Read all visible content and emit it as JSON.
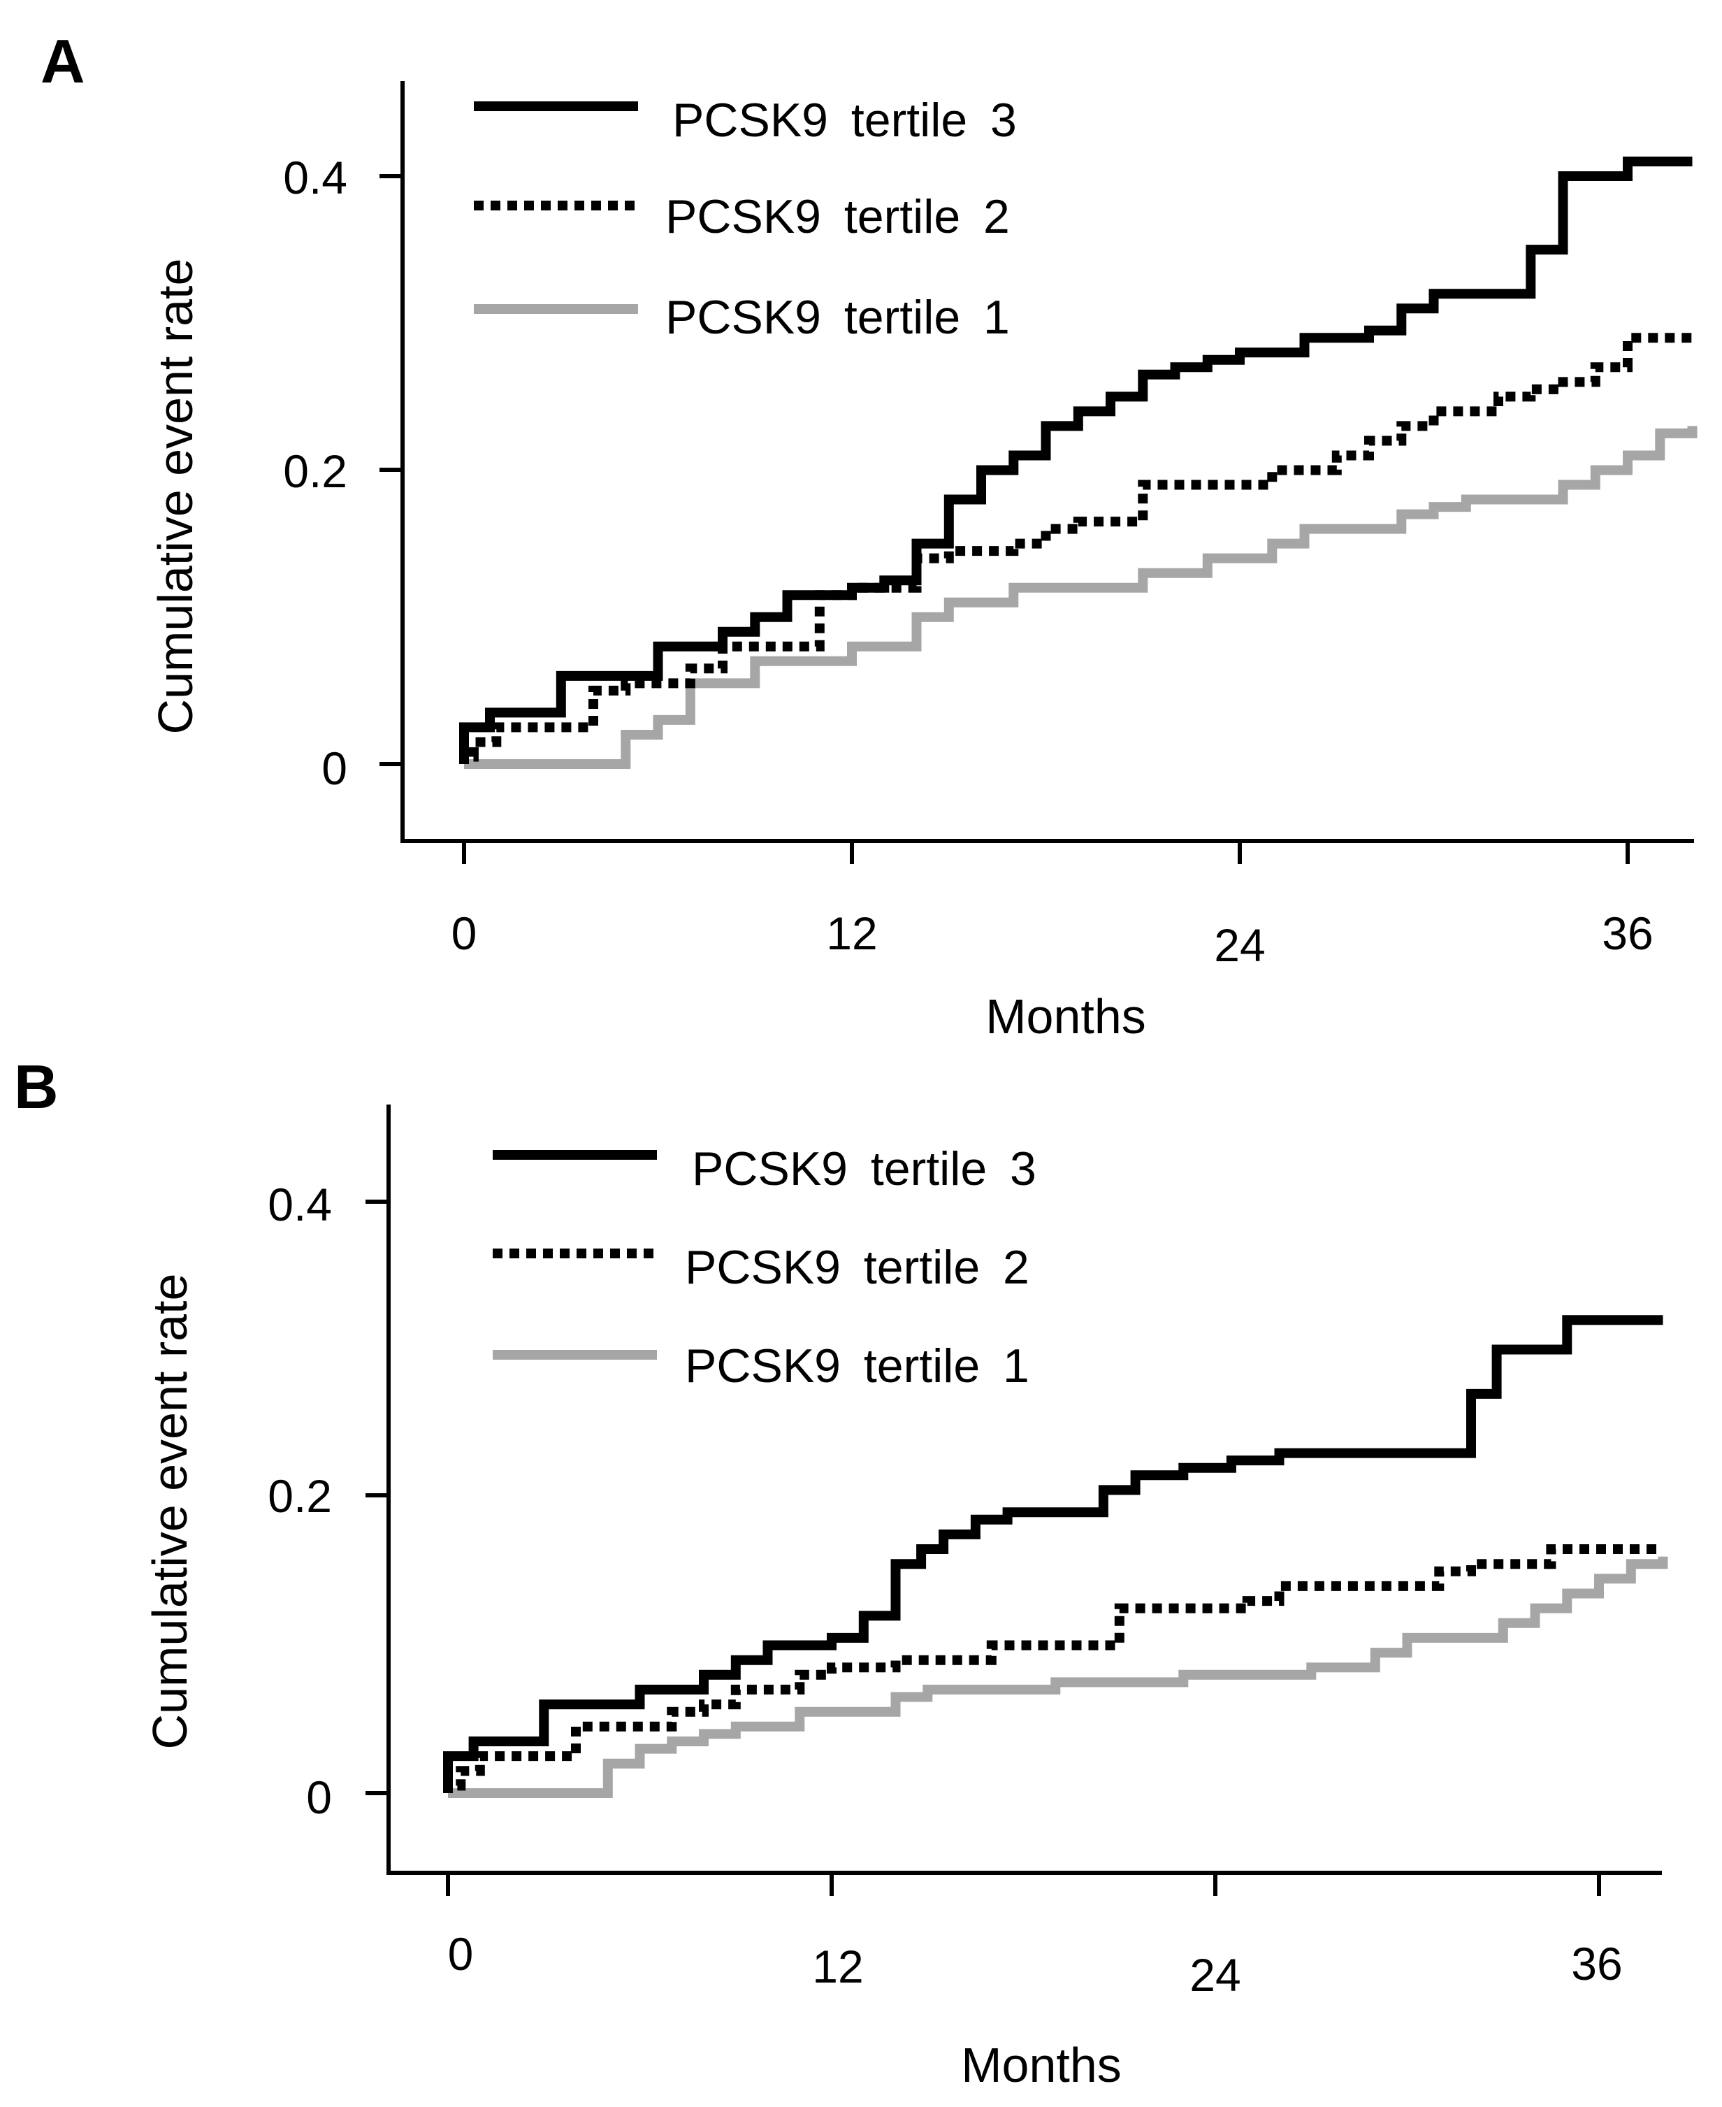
{
  "chart_data": [
    {
      "panel": "A",
      "type": "line",
      "step": true,
      "xlabel": "Months",
      "ylabel": "Cumulative event rate",
      "xticks": [
        0,
        12,
        24,
        36
      ],
      "yticks": [
        0,
        0.2,
        0.4
      ],
      "xtick_labels": [
        "0",
        "12",
        "24",
        "36"
      ],
      "ytick_labels": [
        "0",
        "0.2",
        "0.4"
      ],
      "xlim": [
        -2,
        38
      ],
      "ylim": [
        -0.055,
        0.465
      ],
      "legend_position": "top-left",
      "series": [
        {
          "name": "PCSK9  tertile  3",
          "style": "solid",
          "color": "#000000",
          "x": [
            0,
            0.8,
            3,
            6,
            8,
            9,
            10,
            12,
            13,
            14,
            15,
            16,
            17,
            18,
            19,
            20,
            21,
            22,
            23,
            24,
            25,
            26,
            27,
            28,
            29,
            30,
            31,
            32,
            33,
            34,
            35,
            36,
            38
          ],
          "y": [
            0.025,
            0.035,
            0.06,
            0.08,
            0.09,
            0.1,
            0.115,
            0.12,
            0.125,
            0.15,
            0.18,
            0.2,
            0.21,
            0.23,
            0.24,
            0.25,
            0.265,
            0.27,
            0.275,
            0.28,
            0.28,
            0.29,
            0.29,
            0.295,
            0.31,
            0.32,
            0.32,
            0.32,
            0.35,
            0.4,
            0.4,
            0.41,
            0.41
          ]
        },
        {
          "name": "PCSK9  tertile  2",
          "style": "dotted",
          "color": "#000000",
          "x": [
            0,
            0.3,
            1,
            4,
            5,
            7,
            8,
            11,
            12,
            14,
            15,
            17,
            18,
            19,
            21,
            22,
            24,
            25,
            26,
            27,
            28,
            29,
            30,
            31,
            32,
            33,
            34,
            35,
            36,
            38
          ],
          "y": [
            0.005,
            0.015,
            0.025,
            0.05,
            0.055,
            0.065,
            0.08,
            0.115,
            0.12,
            0.14,
            0.145,
            0.15,
            0.16,
            0.165,
            0.19,
            0.19,
            0.19,
            0.2,
            0.2,
            0.21,
            0.22,
            0.23,
            0.24,
            0.24,
            0.25,
            0.255,
            0.26,
            0.27,
            0.29,
            0.29
          ]
        },
        {
          "name": "PCSK9  tertile  1",
          "style": "solid",
          "color": "#a6a6a6",
          "x": [
            0,
            5,
            6,
            7,
            9,
            12,
            14,
            15,
            17,
            21,
            23,
            25,
            26,
            29,
            30,
            31,
            33,
            34,
            35,
            36,
            37,
            38
          ],
          "y": [
            0,
            0.02,
            0.03,
            0.055,
            0.07,
            0.08,
            0.1,
            0.11,
            0.12,
            0.13,
            0.14,
            0.15,
            0.16,
            0.17,
            0.175,
            0.18,
            0.18,
            0.19,
            0.2,
            0.21,
            0.225,
            0.23
          ]
        }
      ]
    },
    {
      "panel": "B",
      "type": "line",
      "step": true,
      "xlabel": "Months",
      "ylabel": "Cumulative event rate",
      "xticks": [
        0,
        12,
        24,
        36
      ],
      "yticks": [
        0,
        0.2,
        0.4
      ],
      "xtick_labels": [
        "0",
        "12",
        "24",
        "36"
      ],
      "ytick_labels": [
        "0",
        "0.2",
        "0.4"
      ],
      "xlim": [
        -2,
        38
      ],
      "ylim": [
        -0.055,
        0.465
      ],
      "legend_position": "top-left",
      "series": [
        {
          "name": "PCSK9  tertile  3",
          "style": "solid",
          "color": "#000000",
          "x": [
            0,
            0.8,
            3,
            6,
            8,
            9,
            10,
            12,
            13,
            14,
            14.8,
            15.5,
            16.5,
            17.5,
            20.5,
            21.5,
            23,
            24.5,
            26,
            32,
            32.8,
            33.5,
            35,
            38
          ],
          "y": [
            0.025,
            0.035,
            0.06,
            0.07,
            0.08,
            0.09,
            0.1,
            0.105,
            0.12,
            0.155,
            0.165,
            0.175,
            0.185,
            0.19,
            0.205,
            0.215,
            0.22,
            0.225,
            0.23,
            0.27,
            0.3,
            0.3,
            0.32,
            0.32
          ]
        },
        {
          "name": "PCSK9  tertile  2",
          "style": "dotted",
          "color": "#000000",
          "x": [
            0,
            0.4,
            1,
            4,
            7,
            8,
            9,
            11,
            12,
            14,
            17,
            18,
            21,
            25,
            26,
            31,
            32,
            34.5,
            36,
            38
          ],
          "y": [
            0.005,
            0.015,
            0.025,
            0.045,
            0.055,
            0.06,
            0.07,
            0.08,
            0.085,
            0.09,
            0.1,
            0.1,
            0.125,
            0.13,
            0.14,
            0.15,
            0.155,
            0.165,
            0.165,
            0.165
          ]
        },
        {
          "name": "PCSK9  tertile  1",
          "style": "solid",
          "color": "#a6a6a6",
          "x": [
            0,
            5,
            6,
            7,
            8,
            9,
            11,
            14,
            15,
            19,
            23,
            27,
            29,
            30,
            33,
            34,
            35,
            36,
            37,
            38
          ],
          "y": [
            0,
            0.02,
            0.03,
            0.035,
            0.04,
            0.045,
            0.055,
            0.065,
            0.07,
            0.075,
            0.08,
            0.085,
            0.095,
            0.105,
            0.115,
            0.125,
            0.135,
            0.145,
            0.155,
            0.16
          ]
        }
      ]
    }
  ]
}
